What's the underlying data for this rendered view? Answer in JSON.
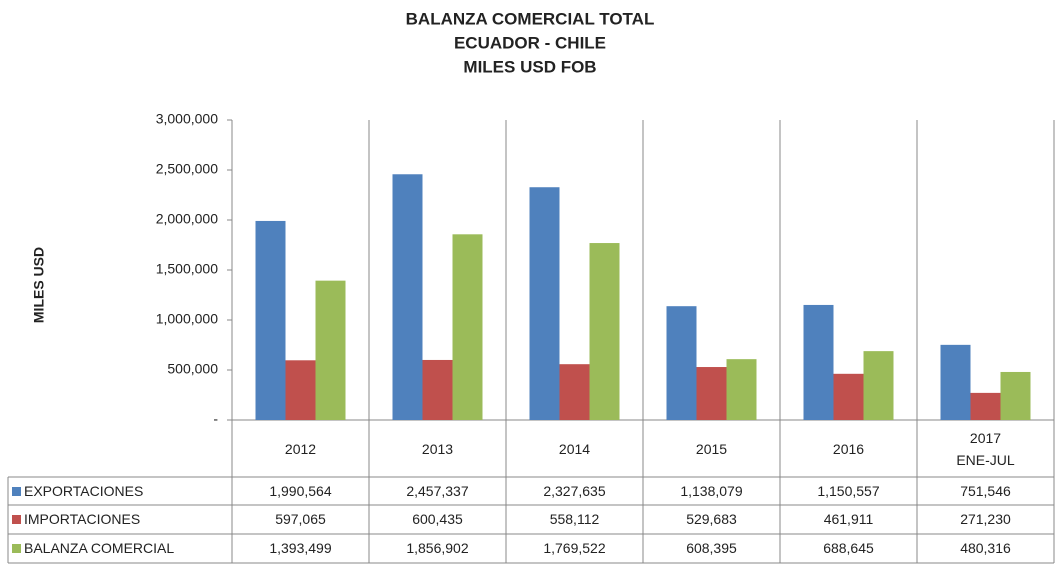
{
  "chart_data": {
    "type": "bar",
    "title": [
      "BALANZA COMERCIAL TOTAL",
      "ECUADOR - CHILE",
      "MILES USD FOB"
    ],
    "y_label": "MILES USD",
    "categories": [
      "2012",
      "2013",
      "2014",
      "2015",
      "2016",
      "2017\nENE-JUL"
    ],
    "series": [
      {
        "name": "EXPORTACIONES",
        "color": "#4f81bd",
        "values": [
          1990564,
          2457337,
          2327635,
          1138079,
          1150557,
          751546
        ],
        "value_labels": [
          "1,990,564",
          "2,457,337",
          "2,327,635",
          "1,138,079",
          "1,150,557",
          "751,546"
        ]
      },
      {
        "name": "IMPORTACIONES",
        "color": "#c0504d",
        "values": [
          597065,
          600435,
          558112,
          529683,
          461911,
          271230
        ],
        "value_labels": [
          "597,065",
          "600,435",
          "558,112",
          "529,683",
          "461,911",
          "271,230"
        ]
      },
      {
        "name": "BALANZA COMERCIAL",
        "color": "#9bbb59",
        "values": [
          1393499,
          1856902,
          1769522,
          608395,
          688645,
          480316
        ],
        "value_labels": [
          "1,393,499",
          "1,856,902",
          "1,769,522",
          "608,395",
          "688,645",
          "480,316"
        ]
      }
    ],
    "ylim": [
      0,
      3000000
    ],
    "yticks": [
      {
        "value": 0,
        "label": "-"
      },
      {
        "value": 500000,
        "label": "500,000"
      },
      {
        "value": 1000000,
        "label": "1,000,000"
      },
      {
        "value": 1500000,
        "label": "1,500,000"
      },
      {
        "value": 2000000,
        "label": "2,000,000"
      },
      {
        "value": 2500000,
        "label": "2,500,000"
      },
      {
        "value": 3000000,
        "label": "3,000,000"
      }
    ],
    "grid": false
  }
}
